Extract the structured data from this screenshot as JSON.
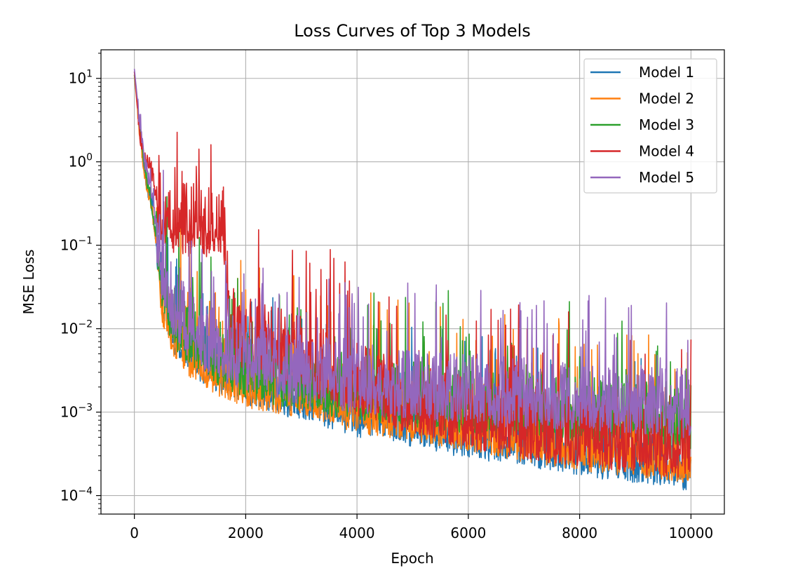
{
  "chart_data": {
    "type": "line",
    "title": "Loss Curves of Top 3 Models",
    "xlabel": "Epoch",
    "ylabel": "MSE Loss",
    "yscale": "log",
    "xlim": [
      -600,
      10600
    ],
    "ylim": [
      6e-05,
      22
    ],
    "grid": true,
    "legend_position": "top-right",
    "x_ticks": [
      0,
      2000,
      4000,
      6000,
      8000,
      10000
    ],
    "x_tick_labels": [
      "0",
      "2000",
      "4000",
      "6000",
      "8000",
      "10000"
    ],
    "y_ticks": [
      {
        "value": 10,
        "base": "10",
        "exp": "1"
      },
      {
        "value": 1,
        "base": "10",
        "exp": "0"
      },
      {
        "value": 0.1,
        "base": "10",
        "exp": "−1"
      },
      {
        "value": 0.01,
        "base": "10",
        "exp": "−2"
      },
      {
        "value": 0.001,
        "base": "10",
        "exp": "−3"
      },
      {
        "value": 0.0001,
        "base": "10",
        "exp": "−4"
      }
    ],
    "series": [
      {
        "name": "Model 1",
        "color": "#1f77b4",
        "x": [
          0,
          100,
          200,
          300,
          400,
          500,
          700,
          1000,
          1500,
          2000,
          3000,
          4000,
          5000,
          6000,
          7000,
          8000,
          9000,
          10000
        ],
        "y": [
          12,
          2.5,
          0.6,
          0.3,
          0.1,
          0.02,
          0.009,
          0.005,
          0.003,
          0.0022,
          0.0014,
          0.0009,
          0.00065,
          0.0005,
          0.0004,
          0.0003,
          0.00025,
          0.0002
        ],
        "noise_up": 0.9,
        "noise_down": 0.25
      },
      {
        "name": "Model 2",
        "color": "#ff7f0e",
        "x": [
          0,
          100,
          200,
          300,
          400,
          500,
          700,
          1000,
          1500,
          2000,
          3000,
          4000,
          5000,
          6000,
          7000,
          8000,
          9000,
          10000
        ],
        "y": [
          11,
          2.0,
          0.55,
          0.3,
          0.1,
          0.02,
          0.008,
          0.0045,
          0.0028,
          0.002,
          0.0015,
          0.001,
          0.0008,
          0.0006,
          0.00045,
          0.00035,
          0.0003,
          0.00025
        ],
        "noise_up": 1.1,
        "noise_down": 0.25
      },
      {
        "name": "Model 3",
        "color": "#2ca02c",
        "x": [
          0,
          100,
          200,
          300,
          400,
          500,
          700,
          1000,
          1500,
          2000,
          3000,
          4000,
          5000,
          6000,
          7000,
          8000,
          9000,
          10000
        ],
        "y": [
          11,
          2.5,
          0.7,
          0.35,
          0.12,
          0.03,
          0.012,
          0.007,
          0.004,
          0.003,
          0.002,
          0.0016,
          0.0013,
          0.0011,
          0.001,
          0.0009,
          0.0008,
          0.0007
        ],
        "noise_up": 1.0,
        "noise_down": 0.3
      },
      {
        "name": "Model 4",
        "color": "#d62728",
        "x": [
          0,
          100,
          200,
          300,
          400,
          500,
          700,
          1000,
          1300,
          1600,
          1650,
          1700,
          1800,
          2000,
          3000,
          4000,
          5000,
          6000,
          7000,
          8000,
          9000,
          10000
        ],
        "y": [
          12,
          2.0,
          1.1,
          0.8,
          0.35,
          0.22,
          0.18,
          0.16,
          0.15,
          0.14,
          0.06,
          0.012,
          0.008,
          0.007,
          0.004,
          0.002,
          0.0012,
          0.0008,
          0.0006,
          0.0005,
          0.0004,
          0.00035
        ],
        "noise_up": 1.1,
        "noise_down": 0.35
      },
      {
        "name": "Model 5",
        "color": "#9467bd",
        "x": [
          0,
          100,
          200,
          300,
          400,
          500,
          700,
          1000,
          1500,
          2000,
          3000,
          4000,
          5000,
          6000,
          7000,
          8000,
          9000,
          10000
        ],
        "y": [
          13,
          2.8,
          0.9,
          0.45,
          0.15,
          0.05,
          0.02,
          0.01,
          0.006,
          0.0045,
          0.003,
          0.0024,
          0.002,
          0.0018,
          0.0016,
          0.0015,
          0.0014,
          0.0012
        ],
        "noise_up": 0.9,
        "noise_down": 0.4
      }
    ]
  }
}
